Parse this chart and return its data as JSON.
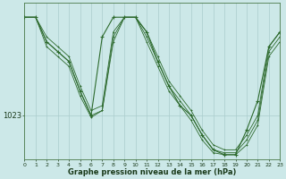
{
  "title": "Graphe pression niveau de la mer (hPa)",
  "background_color": "#cce8e8",
  "plot_bg_color": "#cce8e8",
  "line_color": "#2d6a2d",
  "grid_color": "#aacccc",
  "ytick_value": 1023,
  "xlim": [
    0,
    23
  ],
  "ylim": [
    1018.5,
    1034.5
  ],
  "xticks": [
    0,
    1,
    2,
    3,
    4,
    5,
    6,
    7,
    8,
    9,
    10,
    11,
    12,
    13,
    14,
    15,
    16,
    17,
    18,
    19,
    20,
    21,
    22,
    23
  ],
  "s1_y": [
    1033.0,
    1033.0,
    1031.0,
    1030.0,
    1029.0,
    1026.0,
    1023.5,
    1024.0,
    1031.5,
    1033.0,
    1033.0,
    1031.5,
    1029.0,
    1026.5,
    1025.0,
    1023.5,
    1021.5,
    1020.0,
    1019.5,
    1019.5,
    1021.0,
    1023.0,
    1030.0,
    1031.5
  ],
  "s2_y": [
    1033.0,
    1033.0,
    1030.5,
    1029.5,
    1028.5,
    1025.5,
    1023.0,
    1023.5,
    1031.0,
    1033.0,
    1033.0,
    1031.0,
    1028.5,
    1026.0,
    1024.5,
    1023.0,
    1021.0,
    1019.5,
    1019.2,
    1019.2,
    1020.5,
    1022.5,
    1029.5,
    1031.0
  ],
  "s3_y": [
    1033.0,
    1033.0,
    1030.0,
    1029.0,
    1028.0,
    1025.0,
    1022.8,
    1023.5,
    1030.5,
    1033.0,
    1033.0,
    1030.5,
    1028.0,
    1025.5,
    1024.0,
    1022.5,
    1020.5,
    1019.2,
    1019.0,
    1019.0,
    1020.0,
    1022.0,
    1029.0,
    1030.5
  ],
  "main_y": [
    1033.0,
    1033.0,
    1030.5,
    1029.5,
    1028.5,
    1025.5,
    1023.0,
    1031.0,
    1033.0,
    1033.0,
    1033.0,
    1031.5,
    1028.5,
    1026.0,
    1024.0,
    1023.0,
    1021.0,
    1019.5,
    1019.0,
    1019.0,
    1021.5,
    1024.5,
    1030.0,
    1031.5
  ]
}
